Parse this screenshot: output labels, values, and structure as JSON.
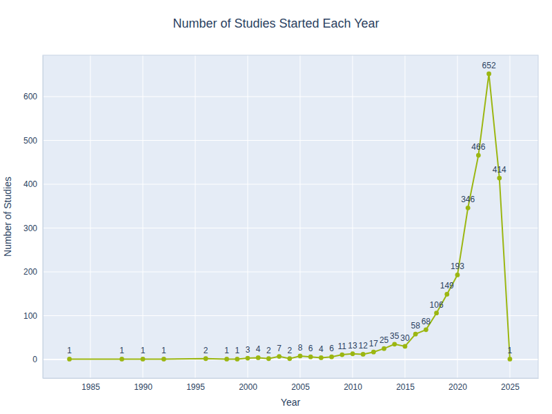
{
  "chart_data": {
    "type": "line",
    "title": "Number of Studies Started Each Year",
    "xlabel": "Year",
    "ylabel": "Number of Studies",
    "x": [
      1983,
      1988,
      1990,
      1992,
      1996,
      1998,
      1999,
      2000,
      2001,
      2002,
      2003,
      2004,
      2005,
      2006,
      2007,
      2008,
      2009,
      2010,
      2011,
      2012,
      2013,
      2014,
      2015,
      2016,
      2017,
      2018,
      2019,
      2020,
      2021,
      2022,
      2023,
      2024,
      2025
    ],
    "values": [
      1,
      1,
      1,
      1,
      2,
      1,
      1,
      3,
      4,
      2,
      7,
      2,
      8,
      6,
      4,
      6,
      11,
      13,
      12,
      17,
      25,
      35,
      30,
      58,
      68,
      106,
      149,
      193,
      346,
      466,
      652,
      414,
      1
    ],
    "color": "#9bb611",
    "marker": "circle",
    "xlim": [
      1980.46,
      2027.7
    ],
    "ylim": [
      -42.5,
      694.5
    ],
    "xticks": [
      1985,
      1990,
      1995,
      2000,
      2005,
      2010,
      2015,
      2020,
      2025
    ],
    "yticks": [
      0,
      100,
      200,
      300,
      400,
      500,
      600
    ],
    "grid": true,
    "data_labels": true
  }
}
